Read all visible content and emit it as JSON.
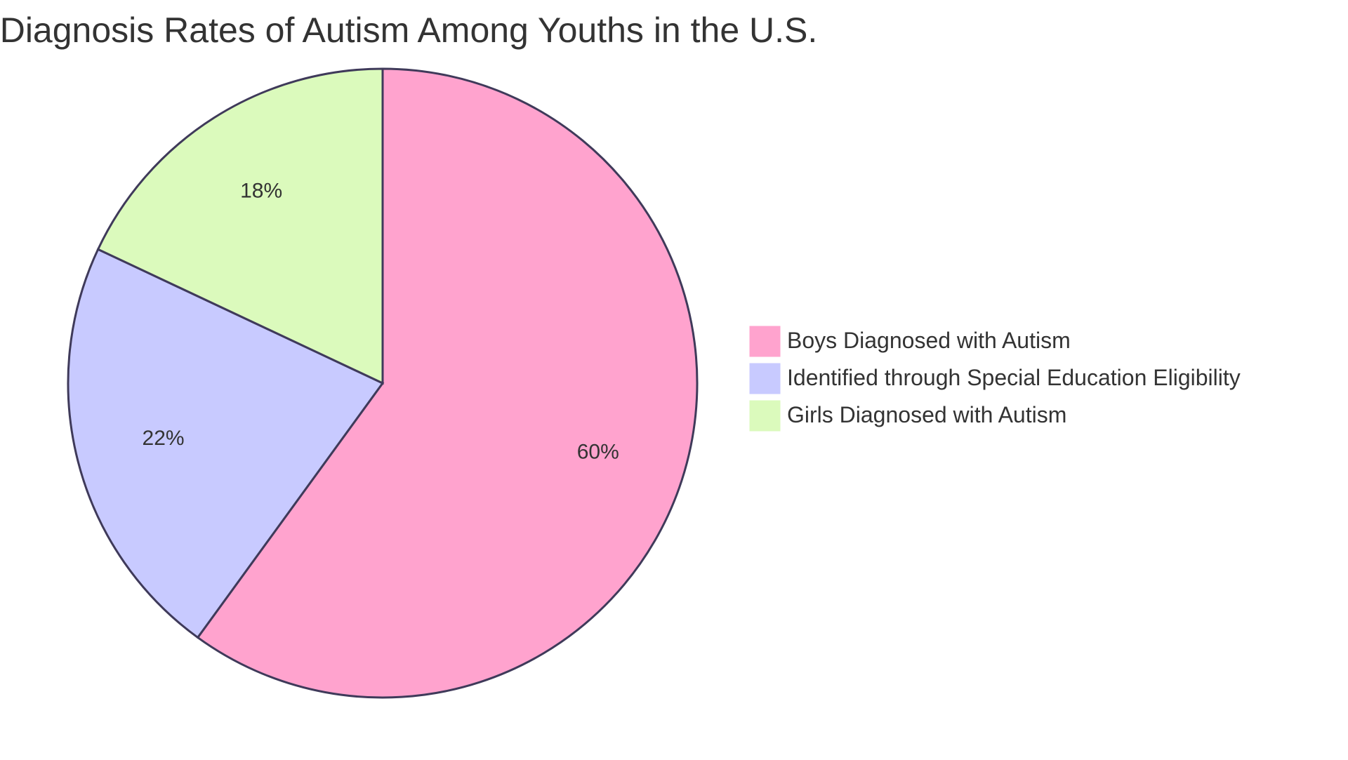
{
  "chart_data": {
    "type": "pie",
    "title": "Diagnosis Rates of Autism Among Youths in the U.S.",
    "slices": [
      {
        "label": "Boys Diagnosed with Autism",
        "value": 60,
        "display": "60%",
        "color": "#FFA3CE"
      },
      {
        "label": "Identified through Special Education Eligibility",
        "value": 22,
        "display": "22%",
        "color": "#C8CAFF"
      },
      {
        "label": "Girls Diagnosed with Autism",
        "value": 18,
        "display": "18%",
        "color": "#DBFABC"
      }
    ],
    "stroke_color": "#3F3A5A",
    "legend_position": "right"
  }
}
